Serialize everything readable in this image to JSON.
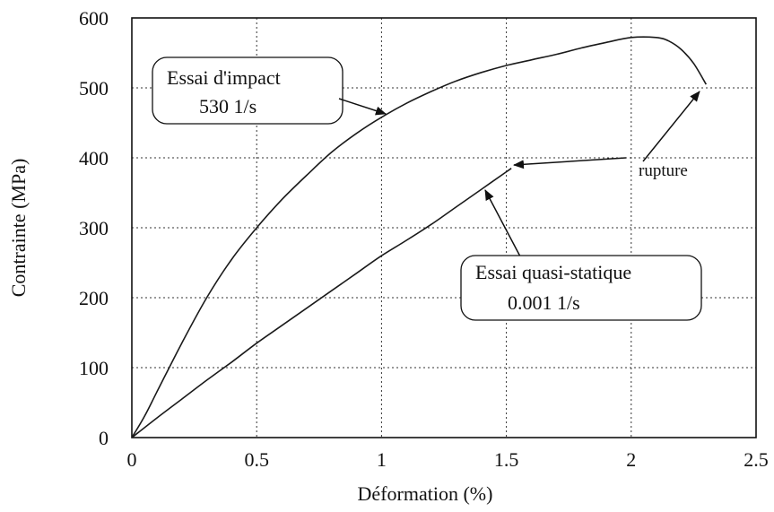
{
  "chart_data": {
    "type": "line",
    "title": "",
    "xlabel": "Déformation (%)",
    "ylabel": "Contrainte (MPa)",
    "xlim": [
      0,
      2.5
    ],
    "ylim": [
      0,
      600
    ],
    "xticks": [
      0,
      0.5,
      1,
      1.5,
      2,
      2.5
    ],
    "xtick_labels": [
      "0",
      "0.5",
      "1",
      "1.5",
      "2",
      "2.5"
    ],
    "yticks": [
      0,
      100,
      200,
      300,
      400,
      500,
      600
    ],
    "ytick_labels": [
      "0",
      "100",
      "200",
      "300",
      "400",
      "500",
      "600"
    ],
    "grid": true,
    "series": [
      {
        "x": [
          0,
          0.05,
          0.1,
          0.2,
          0.3,
          0.4,
          0.5,
          0.6,
          0.7,
          0.8,
          0.9,
          1.0,
          1.1,
          1.2,
          1.3,
          1.4,
          1.5,
          1.6,
          1.7,
          1.8,
          1.9,
          2.0,
          2.1,
          2.15,
          2.2,
          2.25,
          2.3
        ],
        "y": [
          0,
          30,
          65,
          135,
          200,
          255,
          300,
          340,
          375,
          408,
          435,
          458,
          478,
          495,
          510,
          522,
          532,
          540,
          548,
          557,
          565,
          572,
          572,
          567,
          555,
          535,
          505
        ]
      },
      {
        "x": [
          0,
          0.1,
          0.2,
          0.3,
          0.4,
          0.5,
          0.6,
          0.7,
          0.8,
          0.9,
          1.0,
          1.1,
          1.2,
          1.3,
          1.4,
          1.5,
          1.52
        ],
        "y": [
          0,
          28,
          55,
          82,
          108,
          135,
          160,
          185,
          210,
          235,
          260,
          282,
          305,
          330,
          355,
          380,
          385
        ]
      }
    ],
    "annotations": [
      {
        "id": "impact",
        "lines": [
          "Essai d'impact",
          "530  1/s"
        ]
      },
      {
        "id": "quasi",
        "lines": [
          "Essai quasi-statique",
          "0.001  1/s"
        ]
      },
      {
        "id": "rupture",
        "text": "rupture"
      }
    ]
  }
}
